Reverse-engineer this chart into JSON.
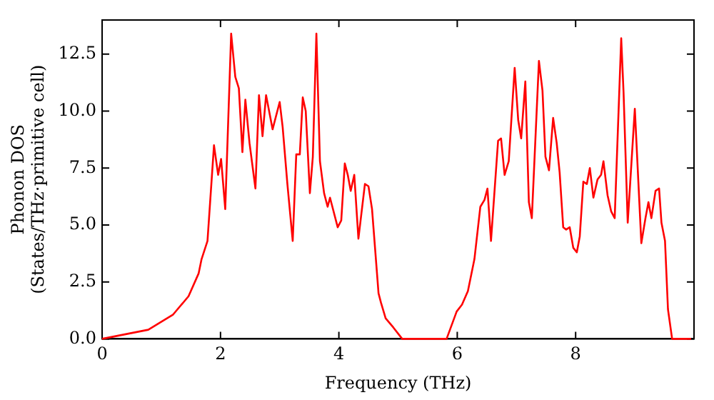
{
  "chart_data": {
    "type": "line",
    "xlabel": "Frequency (THz)",
    "ylabel": "Phonon DOS\n(States/THz·primitive cell)",
    "x": [
      0,
      0.78,
      1.2,
      1.46,
      1.63,
      1.68,
      1.78,
      1.89,
      1.96,
      2.01,
      2.08,
      2.18,
      2.25,
      2.31,
      2.37,
      2.42,
      2.49,
      2.59,
      2.65,
      2.71,
      2.77,
      2.88,
      3.0,
      3.05,
      3.13,
      3.22,
      3.28,
      3.34,
      3.39,
      3.44,
      3.51,
      3.56,
      3.62,
      3.68,
      3.75,
      3.81,
      3.85,
      3.98,
      4.04,
      4.1,
      4.15,
      4.2,
      4.26,
      4.33,
      4.44,
      4.5,
      4.56,
      4.67,
      4.71,
      4.79,
      4.92,
      5.07,
      5.82,
      5.99,
      6.08,
      6.18,
      6.29,
      6.39,
      6.46,
      6.51,
      6.57,
      6.69,
      6.74,
      6.8,
      6.87,
      6.97,
      7.03,
      7.08,
      7.15,
      7.21,
      7.26,
      7.38,
      7.44,
      7.49,
      7.55,
      7.62,
      7.68,
      7.73,
      7.79,
      7.84,
      7.9,
      7.96,
      8.02,
      8.07,
      8.13,
      8.19,
      8.24,
      8.3,
      8.37,
      8.43,
      8.47,
      8.54,
      8.6,
      8.66,
      8.77,
      8.81,
      8.88,
      9.0,
      9.11,
      9.18,
      9.23,
      9.28,
      9.35,
      9.41,
      9.45,
      9.51,
      9.56,
      9.63,
      9.95
    ],
    "series": [
      {
        "color": "#ff0000",
        "values": [
          0,
          0.4,
          1.07,
          1.87,
          2.87,
          3.5,
          4.3,
          8.5,
          7.2,
          7.9,
          5.7,
          13.4,
          11.5,
          11,
          8.2,
          10.5,
          8.6,
          6.6,
          10.7,
          8.9,
          10.7,
          9.2,
          10.4,
          9.3,
          6.8,
          4.3,
          8.1,
          8.1,
          10.6,
          10.0,
          6.4,
          8.0,
          13.4,
          7.8,
          6.4,
          5.8,
          6.2,
          4.9,
          5.2,
          7.7,
          7.2,
          6.5,
          7.2,
          4.4,
          6.8,
          6.7,
          5.7,
          2.0,
          1.6,
          0.9,
          0.5,
          0,
          0,
          1.2,
          1.5,
          2.1,
          3.5,
          5.8,
          6.1,
          6.6,
          4.3,
          8.7,
          8.8,
          7.2,
          7.8,
          11.9,
          9.6,
          8.8,
          11.3,
          6.0,
          5.3,
          12.2,
          10.9,
          8.0,
          7.4,
          9.7,
          8.6,
          7.3,
          4.9,
          4.8,
          4.9,
          4.0,
          3.8,
          4.5,
          6.9,
          6.8,
          7.5,
          6.2,
          7.0,
          7.2,
          7.8,
          6.3,
          5.6,
          5.3,
          13.2,
          10.8,
          5.1,
          10.1,
          4.2,
          5.3,
          6.0,
          5.3,
          6.5,
          6.6,
          5.1,
          4.3,
          1.3,
          0,
          0
        ]
      }
    ],
    "xlim": [
      0,
      10
    ],
    "xticks": [
      0,
      2,
      4,
      6,
      8
    ],
    "ylim": [
      0,
      14
    ],
    "yticks": [
      {
        "value": 0,
        "label": "0.0"
      },
      {
        "value": 2.5,
        "label": "2.5"
      },
      {
        "value": 5,
        "label": "5.0"
      },
      {
        "value": 7.5,
        "label": "7.5"
      },
      {
        "value": 10,
        "label": "10.0"
      },
      {
        "value": 12.5,
        "label": "12.5"
      }
    ],
    "grid": false,
    "legend": false,
    "marker": "none",
    "line_style": "solid"
  }
}
